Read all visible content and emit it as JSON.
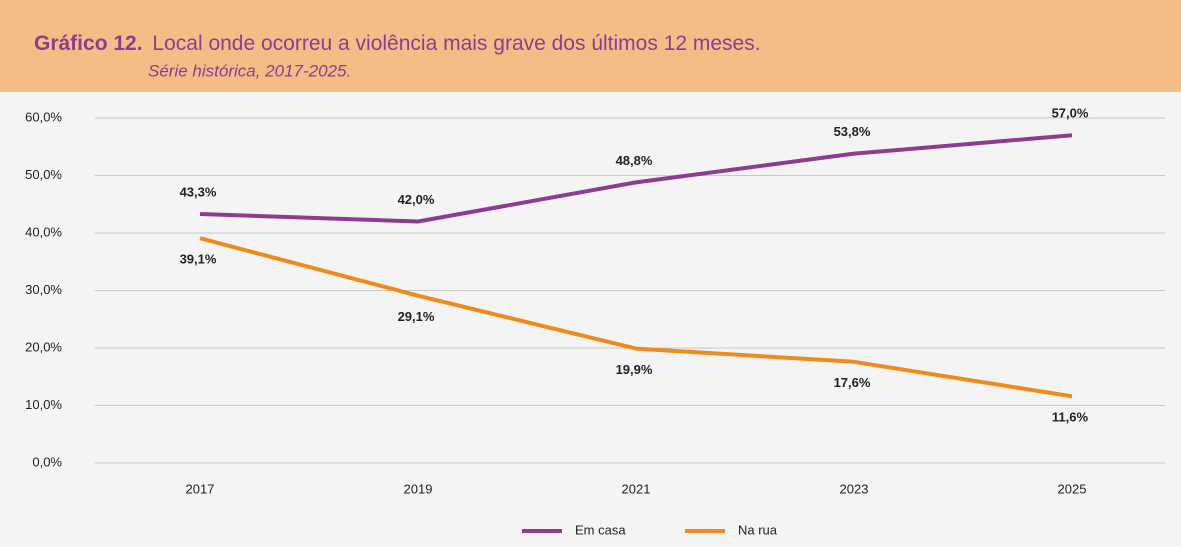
{
  "chart_data": {
    "type": "line",
    "figure_label": "Gráfico 12.",
    "title": "Local onde ocorreu a violência mais grave dos últimos 12 meses.",
    "subtitle": "Série histórica, 2017-2025.",
    "categories": [
      "2017",
      "2019",
      "2021",
      "2023",
      "2025"
    ],
    "series": [
      {
        "name": "Em casa",
        "color": "#8e3c91",
        "values": [
          43.3,
          42.0,
          48.8,
          53.8,
          57.0
        ],
        "value_labels": [
          "43,3%",
          "42,0%",
          "48,8%",
          "53,8%",
          "57,0%"
        ]
      },
      {
        "name": "Na rua",
        "color": "#f08a1c",
        "values": [
          39.1,
          29.1,
          19.9,
          17.6,
          11.6
        ],
        "value_labels": [
          "39,1%",
          "29,1%",
          "19,9%",
          "17,6%",
          "11,6%"
        ]
      }
    ],
    "ylim": [
      0,
      60
    ],
    "yticks": [
      {
        "value": 0,
        "label": "0,0%"
      },
      {
        "value": 10,
        "label": "10,0%"
      },
      {
        "value": 20,
        "label": "20,0%"
      },
      {
        "value": 30,
        "label": "30,0%"
      },
      {
        "value": 40,
        "label": "40,0%"
      },
      {
        "value": 50,
        "label": "50,0%"
      },
      {
        "value": 60,
        "label": "60,0%"
      }
    ],
    "grid": true,
    "legend": "bottom"
  }
}
